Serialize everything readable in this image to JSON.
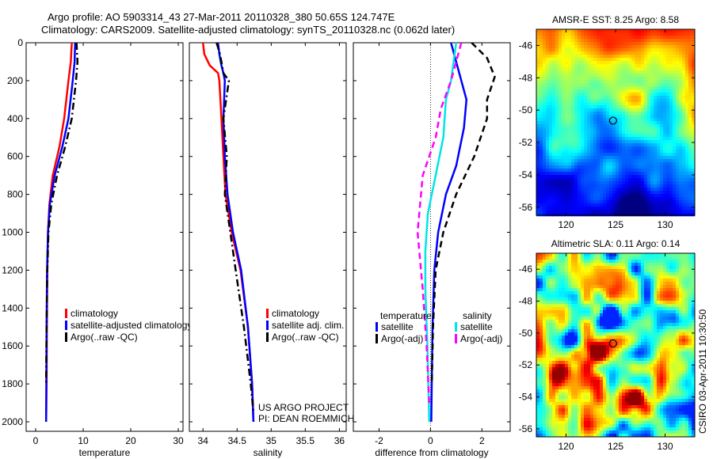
{
  "header": {
    "line1": "Argo profile: AO 5903314_43 27-Mar-2011 20110328_380 50.65S 124.747E",
    "line2": "Climatology: CARS2009. Satellite-adjusted climatology: synTS_20110328.nc (0.062d later)"
  },
  "side_note": "CSIRO 03-Apr-2011 10:30:50",
  "colors": {
    "climatology": "#ff0000",
    "satellite": "#0000ff",
    "argo": "#000000",
    "diff_temp_satellite": "#0000ff",
    "diff_sal_satellite": "#00e5e5",
    "diff_sal_argo": "#ff00ff"
  },
  "chart_data": [
    {
      "type": "line",
      "id": "temperature",
      "xlabel": "temperature",
      "ylabel": "",
      "xlim": [
        -2,
        31
      ],
      "ylim": [
        2050,
        0
      ],
      "xticks": [
        0,
        10,
        20,
        30
      ],
      "yticks": [
        0,
        200,
        400,
        600,
        800,
        1000,
        1200,
        1400,
        1600,
        1800,
        2000
      ],
      "series": [
        {
          "name": "climatology",
          "color": "#ff0000",
          "dash": "solid",
          "x": [
            7.6,
            7.4,
            6.9,
            6.0,
            5.0,
            3.6,
            2.9,
            2.6,
            2.45,
            2.35,
            2.3,
            2.2
          ],
          "y": [
            0,
            100,
            200,
            400,
            550,
            700,
            850,
            1000,
            1200,
            1500,
            1800,
            2000
          ]
        },
        {
          "name": "satellite-adjusted climatology",
          "color": "#0000ff",
          "dash": "solid",
          "x": [
            8.3,
            8.2,
            7.8,
            6.9,
            5.6,
            4.0,
            3.0,
            2.6,
            2.4,
            2.3,
            2.25,
            2.2
          ],
          "y": [
            0,
            100,
            200,
            400,
            550,
            700,
            850,
            1000,
            1200,
            1500,
            1800,
            2000
          ]
        },
        {
          "name": "Argo(..raw -QC)",
          "color": "#000000",
          "dash": "dashdot",
          "x": [
            8.6,
            8.8,
            8.5,
            7.6,
            6.2,
            4.5,
            3.3,
            2.7,
            2.45,
            2.3,
            2.2
          ],
          "y": [
            0,
            100,
            200,
            400,
            550,
            700,
            850,
            1000,
            1200,
            1500,
            1800
          ]
        }
      ]
    },
    {
      "type": "line",
      "id": "salinity",
      "xlabel": "salinity",
      "ylabel": "",
      "xlim": [
        33.8,
        36.1
      ],
      "ylim": [
        2050,
        0
      ],
      "xticks": [
        34,
        34.5,
        35,
        35.5,
        36
      ],
      "yticks": [
        0,
        200,
        400,
        600,
        800,
        1000,
        1200,
        1400,
        1600,
        1800,
        2000
      ],
      "series": [
        {
          "name": "climatology",
          "color": "#ff0000",
          "dash": "solid",
          "x": [
            34.0,
            34.02,
            34.1,
            34.22,
            34.24,
            34.27,
            34.3,
            34.33,
            34.42,
            34.55,
            34.66,
            34.72,
            34.74
          ],
          "y": [
            0,
            60,
            120,
            160,
            200,
            400,
            600,
            800,
            1000,
            1200,
            1500,
            1800,
            2000
          ]
        },
        {
          "name": "satellite adj. clim.",
          "color": "#0000ff",
          "dash": "solid",
          "x": [
            34.22,
            34.24,
            34.27,
            34.3,
            34.32,
            34.3,
            34.32,
            34.36,
            34.44,
            34.56,
            34.66,
            34.72,
            34.74
          ],
          "y": [
            0,
            60,
            120,
            160,
            200,
            400,
            600,
            800,
            1000,
            1200,
            1500,
            1800,
            2000
          ]
        },
        {
          "name": "Argo(..raw -QC)",
          "color": "#000000",
          "dash": "dashdot",
          "x": [
            34.2,
            34.25,
            34.28,
            34.3,
            34.38,
            34.3,
            34.35,
            34.32,
            34.4,
            34.48,
            34.6,
            34.7,
            34.74
          ],
          "y": [
            0,
            60,
            120,
            160,
            200,
            400,
            600,
            800,
            1000,
            1200,
            1500,
            1800,
            1950
          ]
        }
      ],
      "annotations": [
        "US ARGO PROJECT",
        "PI: DEAN ROEMMICH"
      ]
    },
    {
      "type": "line",
      "id": "difference",
      "xlabel": "difference from climatology",
      "ylabel": "",
      "xlim": [
        -3,
        3.1
      ],
      "ylim": [
        2050,
        0
      ],
      "xticks": [
        -2,
        0,
        2
      ],
      "yticks": [
        0,
        200,
        400,
        600,
        800,
        1000,
        1200,
        1400,
        1600,
        1800,
        2000
      ],
      "legend_groups": [
        "temperature",
        "salinity"
      ],
      "series": [
        {
          "group": "temperature",
          "name": "satellite",
          "color": "#0000ff",
          "dash": "solid",
          "x": [
            0.8,
            1.0,
            1.2,
            1.4,
            1.3,
            1.0,
            0.6,
            0.3,
            0.15,
            0.08,
            0.05,
            0.03
          ],
          "y": [
            0,
            100,
            200,
            300,
            450,
            650,
            800,
            1000,
            1200,
            1500,
            1800,
            2000
          ]
        },
        {
          "group": "temperature",
          "name": "Argo(-adj)",
          "color": "#000000",
          "dash": "dashed",
          "x": [
            1.6,
            2.2,
            2.5,
            2.2,
            2.2,
            1.7,
            1.0,
            0.5,
            0.2,
            0.1,
            0.05
          ],
          "y": [
            0,
            80,
            180,
            300,
            400,
            600,
            800,
            1000,
            1200,
            1500,
            1800
          ]
        },
        {
          "group": "salinity",
          "name": "satellite",
          "color": "#00e5e5",
          "dash": "solid",
          "x": [
            1.0,
            0.9,
            0.8,
            0.6,
            0.5,
            0.2,
            -0.1,
            -0.2,
            -0.2,
            -0.12,
            -0.05
          ],
          "y": [
            0,
            100,
            200,
            300,
            500,
            700,
            900,
            1100,
            1300,
            1600,
            2000
          ]
        },
        {
          "group": "salinity",
          "name": "Argo(-adj)",
          "color": "#ff00ff",
          "dash": "dashed",
          "x": [
            1.2,
            1.0,
            0.8,
            0.4,
            0.2,
            -0.3,
            -0.5,
            -0.3,
            -0.15,
            -0.05
          ],
          "y": [
            0,
            100,
            200,
            350,
            500,
            700,
            1000,
            1300,
            1600,
            1900
          ]
        }
      ]
    },
    {
      "type": "heatmap",
      "id": "sst",
      "title": "AMSR-E SST: 8.25 Argo: 8.58",
      "xlim": [
        117,
        133
      ],
      "ylim": [
        -56.5,
        -45
      ],
      "xticks": [
        120,
        125,
        130
      ],
      "yticks": [
        -46,
        -48,
        -50,
        -52,
        -54,
        -56
      ],
      "marker": {
        "lon": 124.747,
        "lat": -50.65
      }
    },
    {
      "type": "heatmap",
      "id": "sla",
      "title": "Altimetric SLA: 0.11 Argo: 0.14",
      "xlim": [
        117,
        133
      ],
      "ylim": [
        -56.5,
        -45
      ],
      "xticks": [
        120,
        125,
        130
      ],
      "yticks": [
        -46,
        -48,
        -50,
        -52,
        -54,
        -56
      ],
      "marker": {
        "lon": 124.747,
        "lat": -50.65
      }
    }
  ]
}
